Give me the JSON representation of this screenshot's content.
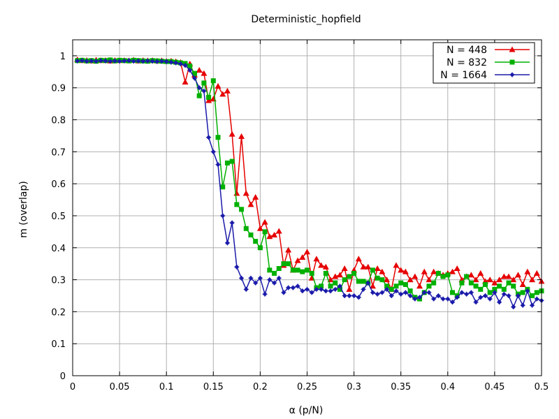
{
  "chart_data": {
    "type": "line",
    "title": "Deterministic_hopfield",
    "xlabel": "α (p/N)",
    "ylabel": "m (overlap)",
    "xlim": [
      0,
      0.5
    ],
    "ylim": [
      0,
      1.05
    ],
    "x_ticks": [
      "0",
      "0.05",
      "0.1",
      "0.15",
      "0.2",
      "0.25",
      "0.3",
      "0.35",
      "0.4",
      "0.45",
      "0.5"
    ],
    "y_ticks": [
      "0",
      "0.1",
      "0.2",
      "0.3",
      "0.4",
      "0.5",
      "0.6",
      "0.7",
      "0.8",
      "0.9",
      "1"
    ],
    "grid": true,
    "legend_position": "top-right",
    "series": [
      {
        "name": "N = 448",
        "color": "#e60000",
        "marker": "triangle",
        "points": [
          [
            0.005,
            0.988
          ],
          [
            0.01,
            0.985
          ],
          [
            0.015,
            0.986
          ],
          [
            0.02,
            0.984
          ],
          [
            0.025,
            0.987
          ],
          [
            0.03,
            0.985
          ],
          [
            0.035,
            0.986
          ],
          [
            0.04,
            0.984
          ],
          [
            0.045,
            0.986
          ],
          [
            0.05,
            0.985
          ],
          [
            0.055,
            0.986
          ],
          [
            0.06,
            0.985
          ],
          [
            0.065,
            0.987
          ],
          [
            0.07,
            0.984
          ],
          [
            0.075,
            0.986
          ],
          [
            0.08,
            0.985
          ],
          [
            0.085,
            0.986
          ],
          [
            0.09,
            0.984
          ],
          [
            0.095,
            0.985
          ],
          [
            0.1,
            0.983
          ],
          [
            0.105,
            0.984
          ],
          [
            0.11,
            0.982
          ],
          [
            0.115,
            0.98
          ],
          [
            0.12,
            0.918
          ],
          [
            0.125,
            0.975
          ],
          [
            0.13,
            0.94
          ],
          [
            0.135,
            0.955
          ],
          [
            0.14,
            0.945
          ],
          [
            0.145,
            0.86
          ],
          [
            0.15,
            0.865
          ],
          [
            0.155,
            0.905
          ],
          [
            0.16,
            0.88
          ],
          [
            0.165,
            0.89
          ],
          [
            0.17,
            0.755
          ],
          [
            0.175,
            0.57
          ],
          [
            0.18,
            0.748
          ],
          [
            0.185,
            0.57
          ],
          [
            0.19,
            0.535
          ],
          [
            0.195,
            0.558
          ],
          [
            0.2,
            0.46
          ],
          [
            0.205,
            0.48
          ],
          [
            0.21,
            0.435
          ],
          [
            0.215,
            0.44
          ],
          [
            0.22,
            0.452
          ],
          [
            0.225,
            0.345
          ],
          [
            0.23,
            0.393
          ],
          [
            0.235,
            0.33
          ],
          [
            0.24,
            0.36
          ],
          [
            0.245,
            0.37
          ],
          [
            0.25,
            0.387
          ],
          [
            0.255,
            0.305
          ],
          [
            0.26,
            0.365
          ],
          [
            0.265,
            0.345
          ],
          [
            0.27,
            0.34
          ],
          [
            0.275,
            0.3
          ],
          [
            0.28,
            0.31
          ],
          [
            0.285,
            0.315
          ],
          [
            0.29,
            0.335
          ],
          [
            0.295,
            0.27
          ],
          [
            0.3,
            0.33
          ],
          [
            0.305,
            0.365
          ],
          [
            0.31,
            0.34
          ],
          [
            0.315,
            0.34
          ],
          [
            0.32,
            0.28
          ],
          [
            0.325,
            0.335
          ],
          [
            0.33,
            0.325
          ],
          [
            0.335,
            0.3
          ],
          [
            0.34,
            0.27
          ],
          [
            0.345,
            0.345
          ],
          [
            0.35,
            0.33
          ],
          [
            0.355,
            0.325
          ],
          [
            0.36,
            0.3
          ],
          [
            0.365,
            0.31
          ],
          [
            0.37,
            0.28
          ],
          [
            0.375,
            0.325
          ],
          [
            0.38,
            0.3
          ],
          [
            0.385,
            0.325
          ],
          [
            0.39,
            0.32
          ],
          [
            0.395,
            0.315
          ],
          [
            0.4,
            0.32
          ],
          [
            0.405,
            0.325
          ],
          [
            0.41,
            0.335
          ],
          [
            0.415,
            0.3
          ],
          [
            0.42,
            0.31
          ],
          [
            0.425,
            0.315
          ],
          [
            0.43,
            0.3
          ],
          [
            0.435,
            0.32
          ],
          [
            0.44,
            0.295
          ],
          [
            0.445,
            0.3
          ],
          [
            0.45,
            0.29
          ],
          [
            0.455,
            0.3
          ],
          [
            0.46,
            0.31
          ],
          [
            0.465,
            0.31
          ],
          [
            0.47,
            0.3
          ],
          [
            0.475,
            0.315
          ],
          [
            0.48,
            0.285
          ],
          [
            0.485,
            0.325
          ],
          [
            0.49,
            0.3
          ],
          [
            0.495,
            0.32
          ],
          [
            0.5,
            0.295
          ]
        ]
      },
      {
        "name": "N = 832",
        "color": "#00b000",
        "marker": "square",
        "points": [
          [
            0.005,
            0.985
          ],
          [
            0.01,
            0.986
          ],
          [
            0.015,
            0.984
          ],
          [
            0.02,
            0.985
          ],
          [
            0.025,
            0.983
          ],
          [
            0.03,
            0.986
          ],
          [
            0.035,
            0.985
          ],
          [
            0.04,
            0.987
          ],
          [
            0.045,
            0.984
          ],
          [
            0.05,
            0.986
          ],
          [
            0.055,
            0.985
          ],
          [
            0.06,
            0.984
          ],
          [
            0.065,
            0.986
          ],
          [
            0.07,
            0.985
          ],
          [
            0.075,
            0.984
          ],
          [
            0.08,
            0.983
          ],
          [
            0.085,
            0.985
          ],
          [
            0.09,
            0.984
          ],
          [
            0.095,
            0.983
          ],
          [
            0.1,
            0.982
          ],
          [
            0.105,
            0.982
          ],
          [
            0.11,
            0.98
          ],
          [
            0.115,
            0.978
          ],
          [
            0.12,
            0.976
          ],
          [
            0.125,
            0.968
          ],
          [
            0.13,
            0.945
          ],
          [
            0.135,
            0.875
          ],
          [
            0.14,
            0.915
          ],
          [
            0.145,
            0.87
          ],
          [
            0.15,
            0.922
          ],
          [
            0.155,
            0.745
          ],
          [
            0.16,
            0.59
          ],
          [
            0.165,
            0.665
          ],
          [
            0.17,
            0.67
          ],
          [
            0.175,
            0.535
          ],
          [
            0.18,
            0.52
          ],
          [
            0.185,
            0.46
          ],
          [
            0.19,
            0.44
          ],
          [
            0.195,
            0.42
          ],
          [
            0.2,
            0.4
          ],
          [
            0.205,
            0.45
          ],
          [
            0.21,
            0.33
          ],
          [
            0.215,
            0.32
          ],
          [
            0.22,
            0.335
          ],
          [
            0.225,
            0.35
          ],
          [
            0.23,
            0.35
          ],
          [
            0.235,
            0.33
          ],
          [
            0.24,
            0.33
          ],
          [
            0.245,
            0.325
          ],
          [
            0.25,
            0.33
          ],
          [
            0.255,
            0.32
          ],
          [
            0.26,
            0.275
          ],
          [
            0.265,
            0.28
          ],
          [
            0.27,
            0.32
          ],
          [
            0.275,
            0.28
          ],
          [
            0.28,
            0.29
          ],
          [
            0.285,
            0.27
          ],
          [
            0.29,
            0.3
          ],
          [
            0.295,
            0.31
          ],
          [
            0.3,
            0.32
          ],
          [
            0.305,
            0.295
          ],
          [
            0.31,
            0.295
          ],
          [
            0.315,
            0.29
          ],
          [
            0.32,
            0.33
          ],
          [
            0.325,
            0.305
          ],
          [
            0.33,
            0.3
          ],
          [
            0.335,
            0.28
          ],
          [
            0.34,
            0.27
          ],
          [
            0.345,
            0.28
          ],
          [
            0.35,
            0.29
          ],
          [
            0.355,
            0.285
          ],
          [
            0.36,
            0.265
          ],
          [
            0.365,
            0.245
          ],
          [
            0.37,
            0.24
          ],
          [
            0.375,
            0.26
          ],
          [
            0.38,
            0.28
          ],
          [
            0.385,
            0.29
          ],
          [
            0.39,
            0.32
          ],
          [
            0.395,
            0.31
          ],
          [
            0.4,
            0.315
          ],
          [
            0.405,
            0.26
          ],
          [
            0.41,
            0.25
          ],
          [
            0.415,
            0.29
          ],
          [
            0.42,
            0.31
          ],
          [
            0.425,
            0.29
          ],
          [
            0.43,
            0.28
          ],
          [
            0.435,
            0.27
          ],
          [
            0.44,
            0.285
          ],
          [
            0.445,
            0.26
          ],
          [
            0.45,
            0.27
          ],
          [
            0.455,
            0.28
          ],
          [
            0.46,
            0.27
          ],
          [
            0.465,
            0.29
          ],
          [
            0.47,
            0.28
          ],
          [
            0.475,
            0.255
          ],
          [
            0.48,
            0.26
          ],
          [
            0.485,
            0.27
          ],
          [
            0.49,
            0.25
          ],
          [
            0.495,
            0.26
          ],
          [
            0.5,
            0.265
          ]
        ]
      },
      {
        "name": "N = 1664",
        "color": "#1a1aaa",
        "marker": "star",
        "points": [
          [
            0.005,
            0.984
          ],
          [
            0.01,
            0.985
          ],
          [
            0.015,
            0.983
          ],
          [
            0.02,
            0.984
          ],
          [
            0.025,
            0.983
          ],
          [
            0.03,
            0.985
          ],
          [
            0.035,
            0.984
          ],
          [
            0.04,
            0.983
          ],
          [
            0.045,
            0.984
          ],
          [
            0.05,
            0.983
          ],
          [
            0.055,
            0.984
          ],
          [
            0.06,
            0.985
          ],
          [
            0.065,
            0.983
          ],
          [
            0.07,
            0.984
          ],
          [
            0.075,
            0.983
          ],
          [
            0.08,
            0.984
          ],
          [
            0.085,
            0.983
          ],
          [
            0.09,
            0.982
          ],
          [
            0.095,
            0.983
          ],
          [
            0.1,
            0.982
          ],
          [
            0.105,
            0.98
          ],
          [
            0.11,
            0.978
          ],
          [
            0.115,
            0.975
          ],
          [
            0.12,
            0.97
          ],
          [
            0.125,
            0.955
          ],
          [
            0.13,
            0.93
          ],
          [
            0.135,
            0.9
          ],
          [
            0.14,
            0.89
          ],
          [
            0.145,
            0.745
          ],
          [
            0.15,
            0.7
          ],
          [
            0.155,
            0.66
          ],
          [
            0.16,
            0.5
          ],
          [
            0.165,
            0.415
          ],
          [
            0.17,
            0.478
          ],
          [
            0.175,
            0.34
          ],
          [
            0.18,
            0.305
          ],
          [
            0.185,
            0.27
          ],
          [
            0.19,
            0.305
          ],
          [
            0.195,
            0.29
          ],
          [
            0.2,
            0.305
          ],
          [
            0.205,
            0.255
          ],
          [
            0.21,
            0.3
          ],
          [
            0.215,
            0.29
          ],
          [
            0.22,
            0.305
          ],
          [
            0.225,
            0.26
          ],
          [
            0.23,
            0.275
          ],
          [
            0.235,
            0.275
          ],
          [
            0.24,
            0.28
          ],
          [
            0.245,
            0.265
          ],
          [
            0.25,
            0.27
          ],
          [
            0.255,
            0.26
          ],
          [
            0.26,
            0.27
          ],
          [
            0.265,
            0.27
          ],
          [
            0.27,
            0.265
          ],
          [
            0.275,
            0.265
          ],
          [
            0.28,
            0.27
          ],
          [
            0.285,
            0.28
          ],
          [
            0.29,
            0.25
          ],
          [
            0.295,
            0.25
          ],
          [
            0.3,
            0.25
          ],
          [
            0.305,
            0.245
          ],
          [
            0.31,
            0.27
          ],
          [
            0.315,
            0.29
          ],
          [
            0.32,
            0.26
          ],
          [
            0.325,
            0.255
          ],
          [
            0.33,
            0.26
          ],
          [
            0.335,
            0.27
          ],
          [
            0.34,
            0.25
          ],
          [
            0.345,
            0.265
          ],
          [
            0.35,
            0.255
          ],
          [
            0.355,
            0.26
          ],
          [
            0.36,
            0.25
          ],
          [
            0.365,
            0.24
          ],
          [
            0.37,
            0.245
          ],
          [
            0.375,
            0.26
          ],
          [
            0.38,
            0.26
          ],
          [
            0.385,
            0.24
          ],
          [
            0.39,
            0.25
          ],
          [
            0.395,
            0.24
          ],
          [
            0.4,
            0.24
          ],
          [
            0.405,
            0.23
          ],
          [
            0.41,
            0.245
          ],
          [
            0.415,
            0.26
          ],
          [
            0.42,
            0.255
          ],
          [
            0.425,
            0.26
          ],
          [
            0.43,
            0.23
          ],
          [
            0.435,
            0.245
          ],
          [
            0.44,
            0.25
          ],
          [
            0.445,
            0.24
          ],
          [
            0.45,
            0.26
          ],
          [
            0.455,
            0.23
          ],
          [
            0.46,
            0.255
          ],
          [
            0.465,
            0.25
          ],
          [
            0.47,
            0.215
          ],
          [
            0.475,
            0.25
          ],
          [
            0.48,
            0.22
          ],
          [
            0.485,
            0.265
          ],
          [
            0.49,
            0.22
          ],
          [
            0.495,
            0.24
          ],
          [
            0.5,
            0.235
          ]
        ]
      }
    ]
  }
}
